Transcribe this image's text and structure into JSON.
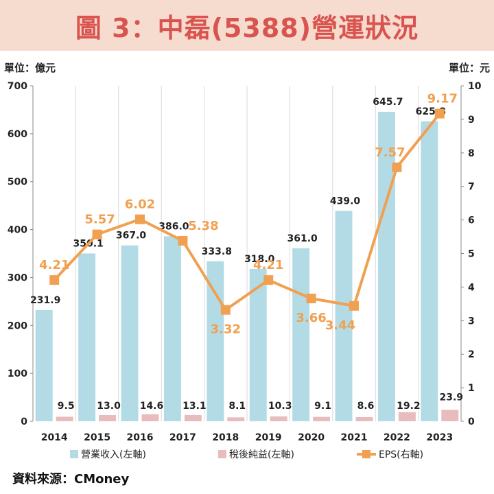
{
  "title": "圖 3：中磊(5388)營運狀況",
  "unit_left": "單位：億元",
  "unit_right": "單位：元",
  "source": "資料來源：CMoney",
  "colors": {
    "revenue": "#b3dbe6",
    "net_income": "#e8bcbc",
    "eps": "#f0a050",
    "title": "#d9534f",
    "banner": "#f6dccf"
  },
  "chart_data": {
    "type": "bar",
    "title": "中磊(5388)營運狀況",
    "categories": [
      "2014",
      "2015",
      "2016",
      "2017",
      "2018",
      "2019",
      "2020",
      "2021",
      "2022",
      "2023"
    ],
    "series": [
      {
        "name": "營業收入(左軸)",
        "axis": "left",
        "type": "bar",
        "values": [
          231.9,
          350.1,
          367.0,
          386.0,
          333.8,
          318.0,
          361.0,
          439.0,
          645.7,
          625.8
        ],
        "labels": [
          "231.9",
          "350.1",
          "367.0",
          "386.0",
          "333.8",
          "318.0",
          "361.0",
          "439.0",
          "645.7",
          "625.8"
        ]
      },
      {
        "name": "稅後純益(左軸)",
        "axis": "left",
        "type": "bar",
        "values": [
          9.5,
          13.0,
          14.6,
          13.1,
          8.1,
          10.3,
          9.1,
          8.6,
          19.2,
          23.9
        ],
        "labels": [
          "9.5",
          "13.0",
          "14.6",
          "13.1",
          "8.1",
          "10.3",
          "9.1",
          "8.6",
          "19.2",
          "23.9"
        ]
      },
      {
        "name": "EPS(右軸)",
        "axis": "right",
        "type": "line",
        "values": [
          4.21,
          5.57,
          6.02,
          5.38,
          3.32,
          4.21,
          3.66,
          3.44,
          7.57,
          9.17
        ],
        "labels": [
          "4.21",
          "5.57",
          "6.02",
          "5.38",
          "3.32",
          "4.21",
          "3.66",
          "3.44",
          "7.57",
          "9.17"
        ]
      }
    ],
    "y_left": {
      "min": 0,
      "max": 700,
      "ticks": [
        "0",
        "100",
        "200",
        "300",
        "400",
        "500",
        "600",
        "700"
      ]
    },
    "y_right": {
      "min": 0,
      "max": 10,
      "ticks": [
        "0",
        "1",
        "2",
        "3",
        "4",
        "5",
        "6",
        "7",
        "8",
        "9",
        "10"
      ]
    },
    "legend_position": "bottom",
    "grid": true
  }
}
